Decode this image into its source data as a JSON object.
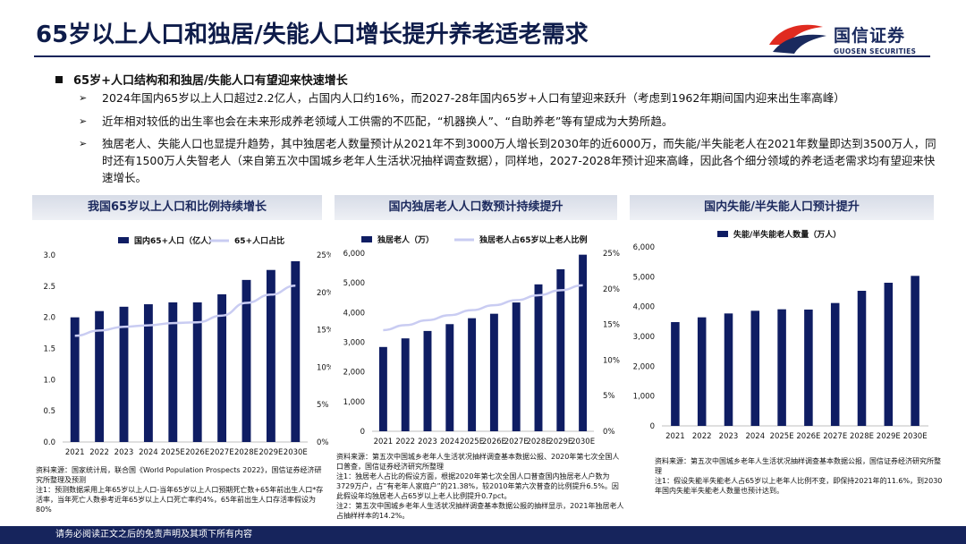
{
  "title": "65岁以上人口和独居/失能人口增长提升养老适老需求",
  "logo": {
    "cn": "国信证券",
    "en": "GUOSEN SECURITIES",
    "colors": {
      "red": "#e02b20",
      "navy": "#1a2a5e"
    }
  },
  "section": {
    "heading": "65岁+人口结构和和独居/失能人口有望迎来快速增长",
    "bullets": [
      "2024年国内65岁以上人口超过2.2亿人，占国内人口约16%，而2027-28年国内65岁+人口有望迎来跃升（考虑到1962年期间国内迎来出生率高峰）",
      "近年相对较低的出生率也会在未来形成养老领域人工供需的不匹配，“机器换人”、“自助养老”等有望成为大势所趋。",
      "独居老人、失能人口也显提升趋势，其中独居老人数量预计从2021年不到3000万人增长到2030年的近6000万，而失能/半失能老人在2021年数量即达到3500万人，同时还有1500万人失智老人（来自第五次中国城乡老年人生活状况抽样调查数据），同样地，2027-2028年预计迎来高峰，因此各个细分领域的养老适老需求均有望迎来快速增长。"
    ]
  },
  "panels": [
    {
      "heading": "我国65岁以上人口和比例持续增长",
      "note": [
        "资料来源：国家统计局，联合国《World Population Prospects 2022》，国信证券经济研究所整理及预测",
        "注1：预测数据采用上年65岁以上人口-当年65岁以上人口预期死亡数+65年前出生人口*存活率，当年死亡人数参考近年65岁以上人口死亡率约4%，65年前出生人口存活率假设为80%"
      ]
    },
    {
      "heading": "国内独居老人人口数预计持续提升",
      "note": [
        "资料来源：第五次中国城乡老年人生活状况抽样调查基本数据公报、2020年第七次全国人口普查，国信证券经济研究所整理",
        "注1：独居老人占比的假设方面，根据2020年第七次全国人口普查国内独居老人户数为3729万户，占“有老年人家庭户”的21.38%，较2010年第六次普查的比例提升6.5%。因此假设年均独居老人占65岁以上老人比例提升0.7pct。",
        "注2：第五次中国城乡老年人生活状况抽样调查基本数据公报的抽样显示，2021年独居老人占抽样样本的14.2%。"
      ]
    },
    {
      "heading": "国内失能/半失能人口预计提升",
      "note": [
        "资料来源：第五次中国城乡老年人生活状况抽样调查基本数据公报，国信证券经济研究所整理",
        "注1：假设失能半失能老人占65岁以上老年人比例不变，即保持2021年的11.6%，到2030年国内失能半失能老人数量也预计达到。"
      ]
    }
  ],
  "chart_data": [
    {
      "type": "bar",
      "categories": [
        "2021",
        "2022",
        "2023",
        "2024",
        "2025E",
        "2026E",
        "2027E",
        "2028E",
        "2029E",
        "2030E"
      ],
      "series": [
        {
          "name": "国内65+人口（亿人）",
          "type": "bar",
          "axis": "left",
          "values": [
            2.0,
            2.1,
            2.17,
            2.21,
            2.24,
            2.24,
            2.37,
            2.6,
            2.76,
            2.9
          ]
        },
        {
          "name": "65+人口占比",
          "type": "line",
          "axis": "right",
          "values": [
            14.2,
            14.9,
            15.4,
            15.6,
            15.9,
            16.0,
            16.9,
            18.6,
            19.7,
            20.9
          ]
        }
      ],
      "ylim": [
        0,
        3.0
      ],
      "yticks": [
        "0.0",
        "0.5",
        "1.0",
        "1.5",
        "2.0",
        "2.5",
        "3.0"
      ],
      "y2lim": [
        0,
        25
      ],
      "y2ticks": [
        "0%",
        "5%",
        "10%",
        "15%",
        "20%",
        "25%"
      ],
      "colors": {
        "bar": "#0f1d63",
        "line": "#c9ccf2"
      }
    },
    {
      "type": "bar",
      "categories": [
        "2021",
        "2022",
        "2023",
        "2024",
        "2025E",
        "2026E",
        "2027E",
        "2028E",
        "2029E",
        "2030E"
      ],
      "series": [
        {
          "name": "独居老人（万）",
          "type": "bar",
          "axis": "left",
          "values": [
            2840,
            3130,
            3380,
            3610,
            3810,
            3960,
            4340,
            4950,
            5460,
            5950
          ]
        },
        {
          "name": "独居老人占65岁以上老人比例",
          "type": "line",
          "axis": "right",
          "values": [
            14.2,
            14.9,
            15.6,
            16.3,
            17.0,
            17.7,
            18.4,
            19.1,
            19.8,
            20.5
          ]
        }
      ],
      "ylim": [
        0,
        6000
      ],
      "yticks": [
        "0",
        "1,000",
        "2,000",
        "3,000",
        "4,000",
        "5,000",
        "6,000"
      ],
      "y2lim": [
        0,
        25
      ],
      "y2ticks": [
        "0%",
        "5%",
        "10%",
        "15%",
        "20%",
        "25%"
      ],
      "colors": {
        "bar": "#0f1d63",
        "line": "#c9ccf2"
      }
    },
    {
      "type": "bar",
      "categories": [
        "2021",
        "2022",
        "2023",
        "2024",
        "2025E",
        "2026E",
        "2027E",
        "2028E",
        "2029E",
        "2030E"
      ],
      "series": [
        {
          "name": "失能/半失能老人数量（万人）",
          "type": "bar",
          "axis": "left",
          "values": [
            3480,
            3640,
            3770,
            3860,
            3910,
            3900,
            4120,
            4530,
            4800,
            5030
          ]
        }
      ],
      "ylim": [
        0,
        6000
      ],
      "yticks": [
        "0",
        "1,000",
        "2,000",
        "3,000",
        "4,000",
        "5,000",
        "6,000"
      ],
      "colors": {
        "bar": "#0f1d63"
      }
    }
  ],
  "footer": "请务必阅读正文之后的免责声明及其项下所有内容"
}
